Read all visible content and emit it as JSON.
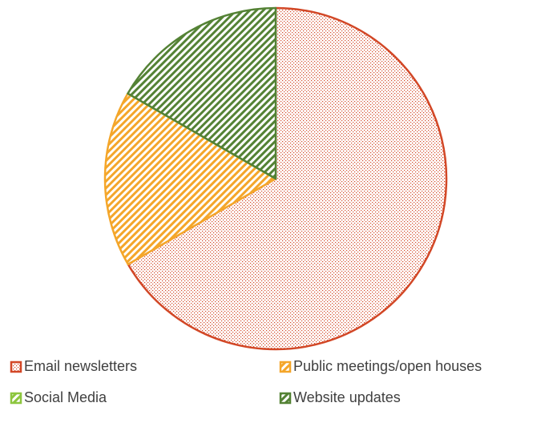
{
  "chart_data": {
    "type": "pie",
    "categories": [
      "Email newsletters",
      "Public meetings/open houses",
      "Social Media",
      "Website updates"
    ],
    "values": [
      66.7,
      16.7,
      0,
      16.7
    ],
    "colors": [
      "#d24726",
      "#f4a62a",
      "#8dc63f",
      "#548235"
    ],
    "legend": "bottom"
  }
}
